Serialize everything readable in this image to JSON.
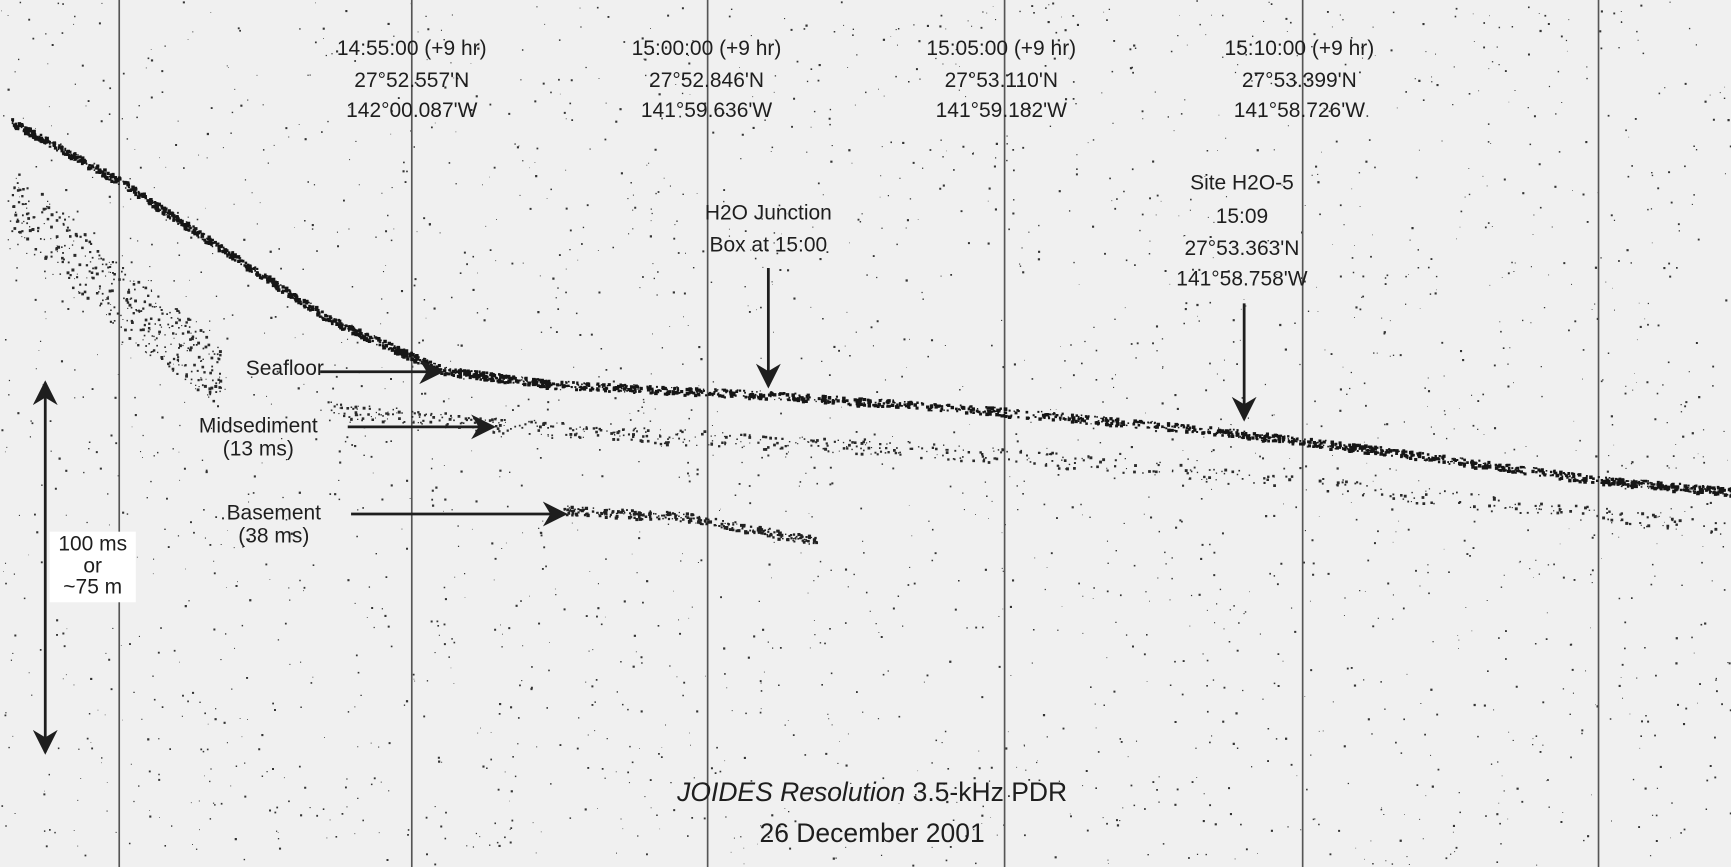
{
  "time_labels": [
    {
      "time": "14:55:00 (+9 hr)",
      "lat": "27°52.557'N",
      "lon": "142°00.087'W"
    },
    {
      "time": "15:00:00 (+9 hr)",
      "lat": "27°52.846'N",
      "lon": "141°59.636'W"
    },
    {
      "time": "15:05:00 (+9 hr)",
      "lat": "27°53.110'N",
      "lon": "141°59.182'W"
    },
    {
      "time": "15:10:00 (+9 hr)",
      "lat": "27°53.399'N",
      "lon": "141°58.726'W"
    }
  ],
  "junction_box": {
    "lines": [
      "H2O Junction",
      "Box at 15:00"
    ]
  },
  "site": {
    "lines": [
      "Site H2O-5",
      "15:09",
      "27°53.363'N",
      "141°58.758'W"
    ]
  },
  "layers": {
    "seafloor": {
      "name": "Seafloor"
    },
    "midsediment": {
      "name": "Midsediment",
      "depth": "(13 ms)"
    },
    "basement": {
      "name": "Basement",
      "depth": "(38 ms)"
    }
  },
  "scale_bar": {
    "lines": [
      "100 ms",
      "or",
      "~75 m"
    ]
  },
  "caption": {
    "title_italic": "JOIDES Resolution",
    "title_rest": " 3.5-kHz PDR",
    "date": "26 December 2001"
  }
}
